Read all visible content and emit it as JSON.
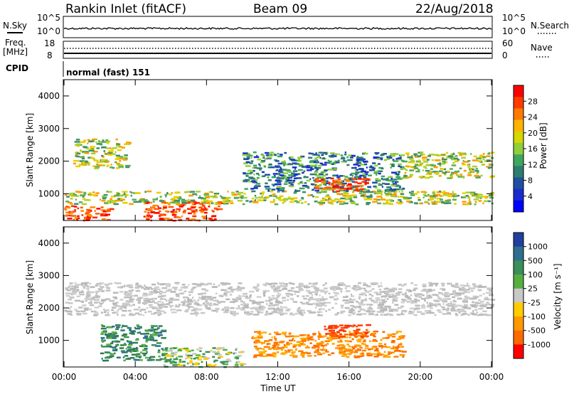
{
  "header": {
    "station": "Rankin Inlet (fitACF)",
    "beam": "Beam 09",
    "date": "22/Aug/2018"
  },
  "panels": {
    "nsky_label": "N.Sky",
    "nsky_ticks": [
      "10^5",
      "10^0"
    ],
    "nsearch_label": "N.Search",
    "nsearch_ticks": [
      "10^5",
      "10^0"
    ],
    "freq_label_1": "Freq.",
    "freq_label_2": "[MHz]",
    "freq_ticks": [
      "18",
      "8"
    ],
    "nave_label": "Nave",
    "nave_ticks": [
      "60",
      "0"
    ],
    "cpid_label": "CPID",
    "cpid_value": "normal (fast) 151"
  },
  "chart_data": [
    {
      "type": "heatmap",
      "name": "power",
      "ylabel": "Slant Range [km]",
      "yticks": [
        "4000",
        "3000",
        "2000",
        "1000"
      ],
      "ylim": [
        180,
        4500
      ],
      "xlim": [
        0,
        24
      ],
      "colorbar": {
        "label": "Power [dB]",
        "ticks": [
          "28",
          "24",
          "20",
          "16",
          "12",
          "8",
          "4"
        ],
        "colors": [
          "#ff0000",
          "#ff3b00",
          "#ff7a00",
          "#ffb400",
          "#d6d600",
          "#8fcf3a",
          "#3fa65f",
          "#2e7d6f",
          "#1f4fa0",
          "#1a2ccf",
          "#0000ff"
        ]
      },
      "bands": [
        {
          "t0": 0.0,
          "t1": 2.6,
          "r0": 200,
          "r1": 650,
          "level": "high"
        },
        {
          "t0": 4.3,
          "t1": 8.8,
          "r0": 200,
          "r1": 800,
          "level": "high"
        },
        {
          "t0": 0.0,
          "t1": 24.0,
          "r0": 700,
          "r1": 1100,
          "level": "mid"
        },
        {
          "t0": 0.5,
          "t1": 3.5,
          "r0": 1800,
          "r1": 2700,
          "level": "mid"
        },
        {
          "t0": 10.0,
          "t1": 19.0,
          "r0": 1100,
          "r1": 2300,
          "level": "low"
        },
        {
          "t0": 19.0,
          "t1": 24.0,
          "r0": 1500,
          "r1": 2300,
          "level": "mid"
        },
        {
          "t0": 14.0,
          "t1": 17.0,
          "r0": 1100,
          "r1": 1500,
          "level": "high"
        }
      ]
    },
    {
      "type": "heatmap",
      "name": "velocity",
      "xlabel": "Time UT",
      "ylabel": "Slant Range [km]",
      "yticks": [
        "4000",
        "3000",
        "2000",
        "1000"
      ],
      "ylim": [
        180,
        4500
      ],
      "xlim": [
        0,
        24
      ],
      "xticks": [
        "00:00",
        "04:00",
        "08:00",
        "12:00",
        "16:00",
        "20:00",
        "00:00"
      ],
      "colorbar": {
        "label": "Velocity [m s⁻¹]",
        "ticks": [
          "1000",
          "500",
          "100",
          "25",
          "-25",
          "-100",
          "-500",
          "-1000"
        ],
        "colors": [
          "#2040a0",
          "#2e6e8e",
          "#3a8f5a",
          "#55b040",
          "#c8c8c8",
          "#ffcc00",
          "#ff9900",
          "#ff6a00",
          "#ff0000"
        ]
      },
      "bands": [
        {
          "t0": 0.0,
          "t1": 24.0,
          "r0": 1800,
          "r1": 2800,
          "level": "grey"
        },
        {
          "t0": 2.0,
          "t1": 5.5,
          "r0": 400,
          "r1": 1500,
          "level": "green"
        },
        {
          "t0": 10.5,
          "t1": 19.0,
          "r0": 500,
          "r1": 1300,
          "level": "orange"
        },
        {
          "t0": 14.5,
          "t1": 17.0,
          "r0": 1100,
          "r1": 1500,
          "level": "red"
        },
        {
          "t0": 5.5,
          "t1": 10.0,
          "r0": 200,
          "r1": 800,
          "level": "mixed"
        }
      ]
    }
  ]
}
